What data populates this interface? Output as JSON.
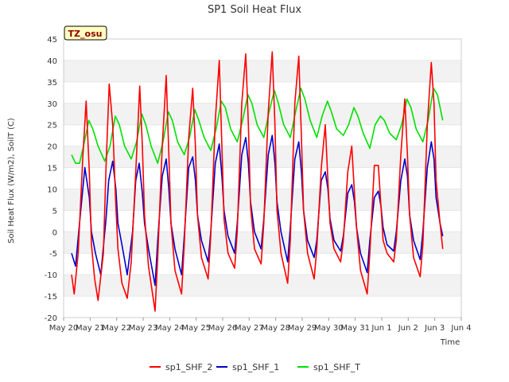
{
  "chart_data": {
    "type": "line",
    "title": "SP1 Soil Heat Flux",
    "xlabel": "Time",
    "ylabel": "Soil Heat Flux (W/m2), SoilT (C)",
    "badge": "TZ_osu",
    "ylim": [
      -20,
      45
    ],
    "yticks": [
      -20,
      -15,
      -10,
      -5,
      0,
      5,
      10,
      15,
      20,
      25,
      30,
      35,
      40,
      45
    ],
    "xlim": [
      0,
      15
    ],
    "xticks": [
      {
        "x": 0,
        "label": "May 20"
      },
      {
        "x": 1,
        "label": "May 21"
      },
      {
        "x": 2,
        "label": "May 22"
      },
      {
        "x": 3,
        "label": "May 23"
      },
      {
        "x": 4,
        "label": "May 24"
      },
      {
        "x": 5,
        "label": "May 25"
      },
      {
        "x": 6,
        "label": "May 26"
      },
      {
        "x": 7,
        "label": "May 27"
      },
      {
        "x": 8,
        "label": "May 28"
      },
      {
        "x": 9,
        "label": "May 29"
      },
      {
        "x": 10,
        "label": "May 30"
      },
      {
        "x": 11,
        "label": "May 31"
      },
      {
        "x": 12,
        "label": "Jun 1"
      },
      {
        "x": 13,
        "label": "Jun 2"
      },
      {
        "x": 14,
        "label": "Jun 3"
      },
      {
        "x": 15,
        "label": "Jun 4"
      }
    ],
    "grid": "horizontal bands",
    "legend_position": "bottom",
    "series": [
      {
        "name": "sp1_SHF_2",
        "color": "#ff0000",
        "x": [
          0.3,
          0.4,
          0.55,
          0.72,
          0.85,
          0.97,
          1.05,
          1.17,
          1.3,
          1.5,
          1.6,
          1.72,
          1.85,
          1.97,
          2.05,
          2.2,
          2.4,
          2.55,
          2.72,
          2.87,
          2.97,
          3.05,
          3.2,
          3.45,
          3.55,
          3.72,
          3.87,
          3.97,
          4.05,
          4.2,
          4.45,
          4.55,
          4.72,
          4.87,
          4.97,
          5.05,
          5.2,
          5.45,
          5.55,
          5.72,
          5.87,
          5.97,
          6.05,
          6.2,
          6.45,
          6.55,
          6.72,
          6.87,
          6.97,
          7.05,
          7.2,
          7.45,
          7.55,
          7.72,
          7.87,
          7.97,
          8.05,
          8.2,
          8.45,
          8.55,
          8.72,
          8.87,
          8.97,
          9.05,
          9.2,
          9.45,
          9.55,
          9.72,
          9.87,
          9.97,
          10.05,
          10.2,
          10.45,
          10.55,
          10.72,
          10.87,
          10.97,
          11.05,
          11.2,
          11.45,
          11.55,
          11.72,
          11.87,
          11.97,
          12.05,
          12.2,
          12.45,
          12.55,
          12.72,
          12.87,
          12.97,
          13.05,
          13.2,
          13.45,
          13.55,
          13.72,
          13.87,
          13.97,
          14.05,
          14.2,
          14.3
        ],
        "y": [
          -10,
          -14.5,
          -5,
          17,
          30.5,
          14,
          -3,
          -11,
          -16,
          -5,
          15,
          34.5,
          25,
          6,
          -4,
          -12,
          -15.5,
          -7,
          14,
          34,
          20,
          4,
          -8,
          -18.5,
          -6,
          20,
          36.5,
          18,
          2,
          -9,
          -14.5,
          -3,
          22,
          33.5,
          20,
          4,
          -6,
          -11,
          -1,
          26,
          40,
          20,
          3,
          -5,
          -8.5,
          0,
          30,
          41.5,
          25,
          6,
          -4,
          -7.5,
          2,
          28,
          42,
          25,
          5,
          -5,
          -12,
          -2,
          30,
          41,
          22,
          5,
          -5,
          -11,
          -4,
          15,
          25,
          12,
          2,
          -4,
          -7,
          -2,
          14,
          20,
          9,
          1,
          -9,
          -14.5,
          -5,
          15.5,
          15.5,
          6,
          -2,
          -5,
          -7,
          -2,
          18,
          31,
          18,
          4,
          -6,
          -10.5,
          -3,
          25,
          39.5,
          30,
          12,
          2,
          -4
        ]
      },
      {
        "name": "sp1_SHF_1",
        "color": "#0000cc",
        "x": [
          0.3,
          0.45,
          0.6,
          0.8,
          0.97,
          1.05,
          1.2,
          1.4,
          1.6,
          1.7,
          1.85,
          1.97,
          2.05,
          2.2,
          2.4,
          2.6,
          2.72,
          2.85,
          2.97,
          3.05,
          3.2,
          3.45,
          3.55,
          3.72,
          3.87,
          3.97,
          4.05,
          4.2,
          4.45,
          4.55,
          4.72,
          4.87,
          4.97,
          5.05,
          5.2,
          5.45,
          5.55,
          5.72,
          5.87,
          5.97,
          6.05,
          6.2,
          6.45,
          6.55,
          6.72,
          6.87,
          6.97,
          7.05,
          7.2,
          7.45,
          7.55,
          7.72,
          7.87,
          7.97,
          8.05,
          8.2,
          8.45,
          8.55,
          8.72,
          8.87,
          8.97,
          9.05,
          9.2,
          9.45,
          9.55,
          9.72,
          9.87,
          9.97,
          10.05,
          10.2,
          10.45,
          10.55,
          10.72,
          10.87,
          10.97,
          11.05,
          11.2,
          11.45,
          11.55,
          11.72,
          11.87,
          11.97,
          12.05,
          12.2,
          12.45,
          12.55,
          12.72,
          12.87,
          12.97,
          13.05,
          13.2,
          13.45,
          13.55,
          13.72,
          13.87,
          13.97,
          14.05,
          14.2,
          14.3
        ],
        "y": [
          -5,
          -8,
          2,
          15,
          8,
          0,
          -5,
          -10,
          3,
          12,
          16.5,
          10,
          2,
          -3,
          -10,
          0,
          12,
          16,
          9,
          2,
          -4,
          -12.5,
          -2,
          13,
          17,
          10,
          2,
          -4,
          -10,
          -1,
          15,
          17.5,
          12,
          4,
          -2,
          -7,
          0,
          16,
          20.5,
          13,
          5,
          -1,
          -5,
          2,
          18,
          22,
          16,
          7,
          0,
          -4,
          3,
          18,
          22.5,
          16,
          7,
          0,
          -7,
          1,
          17,
          21,
          14,
          5,
          -2,
          -6,
          -2,
          12,
          14,
          10,
          3,
          -2,
          -4.5,
          -1,
          9,
          11,
          7,
          1,
          -5,
          -9.5,
          -2,
          8,
          9.5,
          6,
          1,
          -3,
          -4.5,
          0,
          12,
          17,
          13,
          4,
          -2,
          -6.5,
          0,
          15,
          21,
          17,
          8,
          2,
          -1
        ]
      },
      {
        "name": "sp1_SHF_T",
        "color": "#00e000",
        "x": [
          0.3,
          0.45,
          0.6,
          0.75,
          0.95,
          1.1,
          1.3,
          1.55,
          1.75,
          1.95,
          2.1,
          2.3,
          2.55,
          2.75,
          2.95,
          3.1,
          3.3,
          3.55,
          3.75,
          3.95,
          4.1,
          4.3,
          4.55,
          4.75,
          4.95,
          5.1,
          5.3,
          5.55,
          5.75,
          5.95,
          6.1,
          6.3,
          6.55,
          6.75,
          6.95,
          7.1,
          7.3,
          7.55,
          7.75,
          7.95,
          8.1,
          8.3,
          8.55,
          8.75,
          8.95,
          9.1,
          9.3,
          9.55,
          9.75,
          9.95,
          10.1,
          10.3,
          10.55,
          10.75,
          10.95,
          11.1,
          11.3,
          11.55,
          11.75,
          11.95,
          12.1,
          12.3,
          12.55,
          12.75,
          12.95,
          13.1,
          13.3,
          13.55,
          13.75,
          13.95,
          14.1,
          14.3
        ],
        "y": [
          18,
          16,
          16,
          20,
          26,
          24,
          20,
          16.5,
          20,
          27,
          25,
          20,
          17,
          21,
          27.5,
          25,
          20,
          16,
          21,
          28,
          26,
          21,
          18,
          22,
          28.5,
          26,
          22,
          19,
          24,
          30.5,
          29,
          24,
          21,
          26,
          32,
          30,
          25,
          22,
          28,
          33,
          30,
          25,
          22,
          28,
          33.5,
          31,
          26,
          22,
          27,
          30.5,
          28,
          24,
          22.5,
          25,
          29,
          27,
          23,
          19.5,
          25,
          27,
          26,
          23,
          21.5,
          25,
          31,
          29,
          24,
          21,
          26,
          33.5,
          32,
          26
        ]
      }
    ]
  }
}
